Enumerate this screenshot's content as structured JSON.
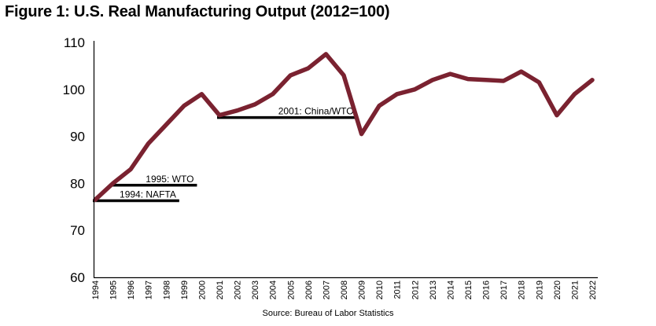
{
  "figure": {
    "title": "Figure 1: U.S. Real Manufacturing Output (2012=100)",
    "source": "Source: Bureau of Labor Statistics"
  },
  "chart_data": {
    "type": "line",
    "title": "Figure 1: U.S. Real Manufacturing Output (2012=100)",
    "xlabel": "",
    "ylabel": "",
    "ylim": [
      60,
      110
    ],
    "yticks": [
      60,
      70,
      80,
      90,
      100,
      110
    ],
    "grid": false,
    "line_color": "#7a2230",
    "x": [
      "1994",
      "1995",
      "1996",
      "1997",
      "1998",
      "1999",
      "2000",
      "2001",
      "2002",
      "2003",
      "2004",
      "2005",
      "2006",
      "2007",
      "2008",
      "2009",
      "2010",
      "2011",
      "2012",
      "2013",
      "2014",
      "2015",
      "2016",
      "2017",
      "2018",
      "2019",
      "2020",
      "2021",
      "2022"
    ],
    "series": [
      {
        "values": [
          76.5,
          80,
          83,
          88.5,
          92.5,
          96.5,
          99,
          94.5,
          95.5,
          96.8,
          99,
          103,
          104.5,
          107.5,
          103,
          90.5,
          96.5,
          99,
          100,
          102,
          103.3,
          102.2,
          102,
          101.8,
          103.8,
          101.5,
          94.5,
          99,
          102
        ]
      }
    ],
    "annotations": [
      {
        "label": "1994: NAFTA",
        "year_start": "1994",
        "year_end": "1999",
        "y": 76.3
      },
      {
        "label": "1995: WTO",
        "year_start": "1995",
        "year_end": "2000",
        "y": 79.6
      },
      {
        "label": "2001: China/WTO",
        "year_start": "2001",
        "year_end": "2009",
        "y": 94
      }
    ]
  }
}
